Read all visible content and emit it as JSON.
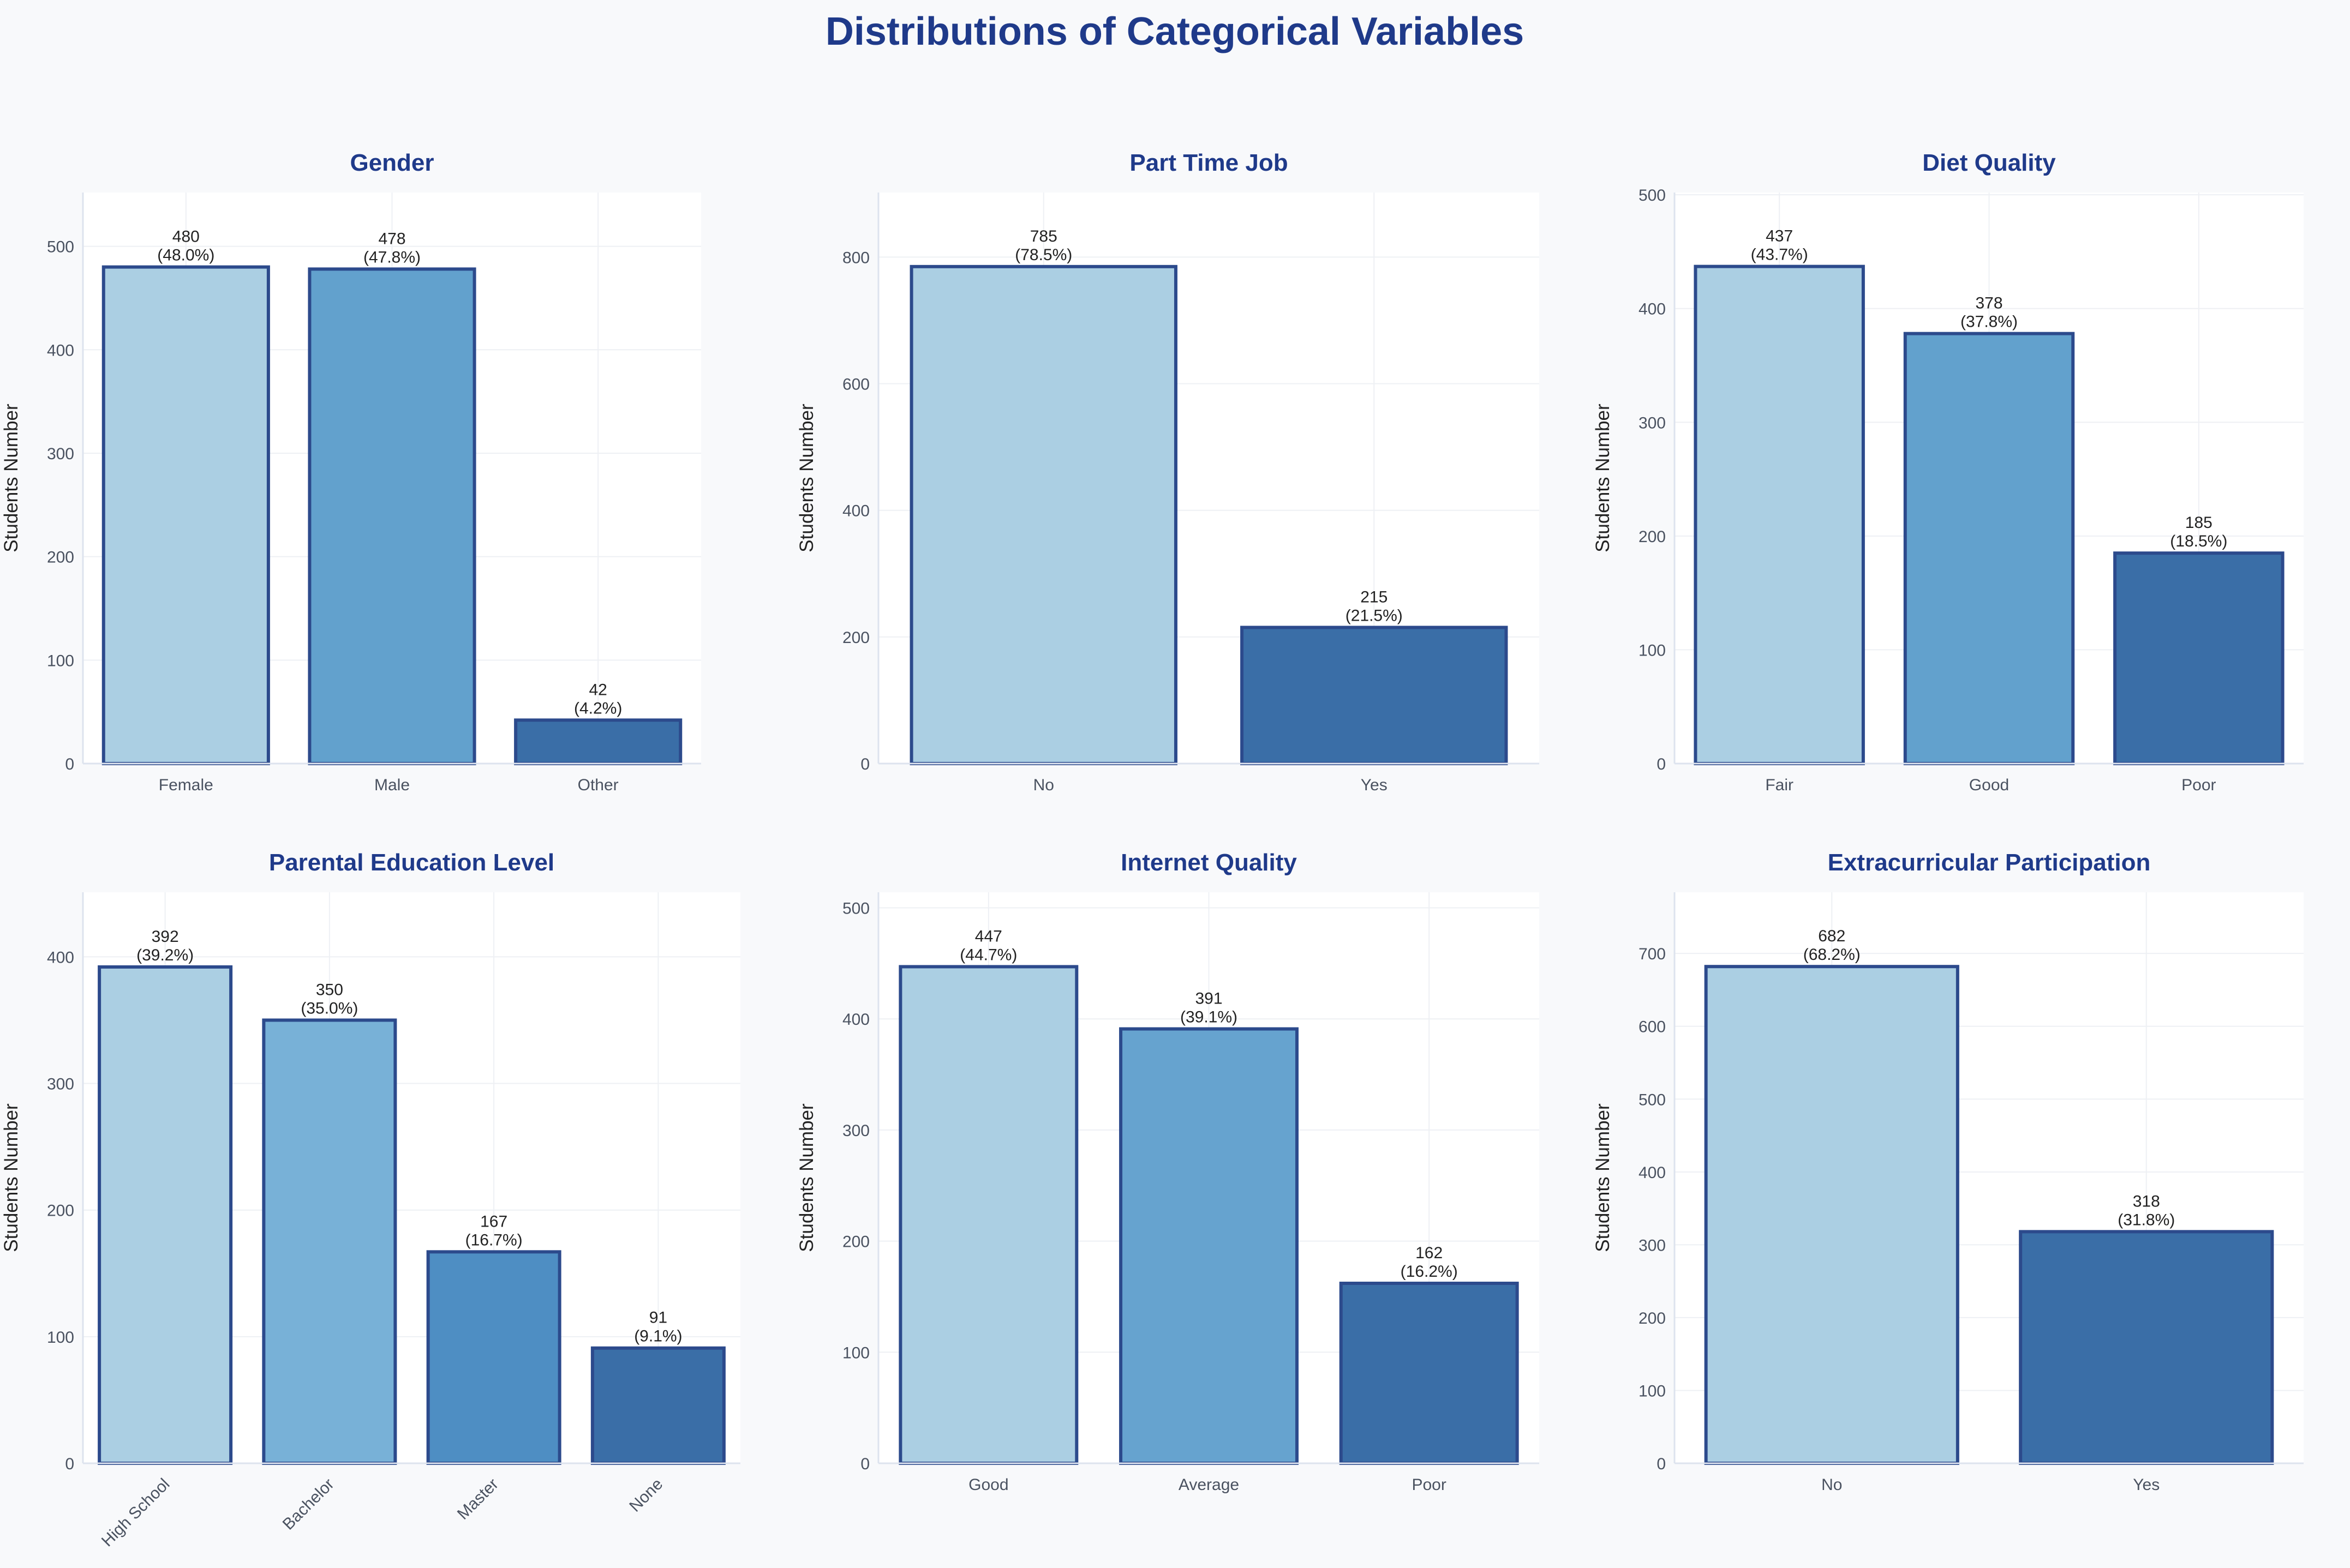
{
  "page": {
    "title": "Distributions of Categorical Variables"
  },
  "colors": {
    "background": "#f8f9fb",
    "plot_background": "#ffffff",
    "title": "#1f3a8a",
    "bar_edge": "#2c4a8c",
    "grid": "#eef0f4",
    "spine": "#dde3ee"
  },
  "chart_data": [
    {
      "type": "bar",
      "title": "Gender",
      "ylabel": "Students Number",
      "categories": [
        "Female",
        "Male",
        "Other"
      ],
      "values": [
        480,
        478,
        42
      ],
      "labels": [
        "480\n(48.0%)",
        "478\n(47.8%)",
        "42\n(4.2%)"
      ],
      "yticks": [
        0,
        100,
        200,
        300,
        400,
        500
      ],
      "ylim": [
        0,
        552
      ],
      "colors": [
        "#abcfe3",
        "#62a1cd",
        "#3a6ea7"
      ],
      "grid": true
    },
    {
      "type": "bar",
      "title": "Part Time Job",
      "ylabel": "Students Number",
      "categories": [
        "No",
        "Yes"
      ],
      "values": [
        785,
        215
      ],
      "labels": [
        "785\n(78.5%)",
        "215\n(21.5%)"
      ],
      "yticks": [
        0,
        200,
        400,
        600,
        800
      ],
      "ylim": [
        0,
        902
      ],
      "colors": [
        "#abcfe3",
        "#3a6ea7"
      ],
      "grid": true
    },
    {
      "type": "bar",
      "title": "Diet Quality",
      "ylabel": "Students Number",
      "categories": [
        "Fair",
        "Good",
        "Poor"
      ],
      "values": [
        437,
        378,
        185
      ],
      "labels": [
        "437\n(43.7%)",
        "378\n(37.8%)",
        "185\n(18.5%)"
      ],
      "yticks": [
        0,
        100,
        200,
        300,
        400,
        500
      ],
      "ylim": [
        0,
        502
      ],
      "colors": [
        "#abcfe3",
        "#62a1cd",
        "#3a6ea7"
      ],
      "grid": true
    },
    {
      "type": "bar",
      "title": "Parental Education Level",
      "ylabel": "Students Number",
      "categories": [
        "High School",
        "Bachelor",
        "Master",
        "None"
      ],
      "values": [
        392,
        350,
        167,
        91
      ],
      "labels": [
        "392\n(39.2%)",
        "350\n(35.0%)",
        "167\n(16.7%)",
        "91\n(9.1%)"
      ],
      "yticks": [
        0,
        100,
        200,
        300,
        400
      ],
      "ylim": [
        0,
        451
      ],
      "colors": [
        "#abcfe3",
        "#78b1d7",
        "#4e8ec3",
        "#3a6ea7"
      ],
      "rotate_xticks": true,
      "grid": true
    },
    {
      "type": "bar",
      "title": "Internet Quality",
      "ylabel": "Students Number",
      "categories": [
        "Good",
        "Average",
        "Poor"
      ],
      "values": [
        447,
        391,
        162
      ],
      "labels": [
        "447\n(44.7%)",
        "391\n(39.1%)",
        "162\n(16.2%)"
      ],
      "yticks": [
        0,
        100,
        200,
        300,
        400,
        500
      ],
      "ylim": [
        0,
        514
      ],
      "colors": [
        "#abcfe3",
        "#66a3cf",
        "#3a6ea7"
      ],
      "grid": true
    },
    {
      "type": "bar",
      "title": "Extracurricular Participation",
      "ylabel": "Students Number",
      "categories": [
        "No",
        "Yes"
      ],
      "values": [
        682,
        318
      ],
      "labels": [
        "682\n(68.2%)",
        "318\n(31.8%)"
      ],
      "yticks": [
        0,
        100,
        200,
        300,
        400,
        500,
        600,
        700
      ],
      "ylim": [
        0,
        784
      ],
      "colors": [
        "#abcfe3",
        "#3a6ea7"
      ],
      "grid": true
    }
  ]
}
